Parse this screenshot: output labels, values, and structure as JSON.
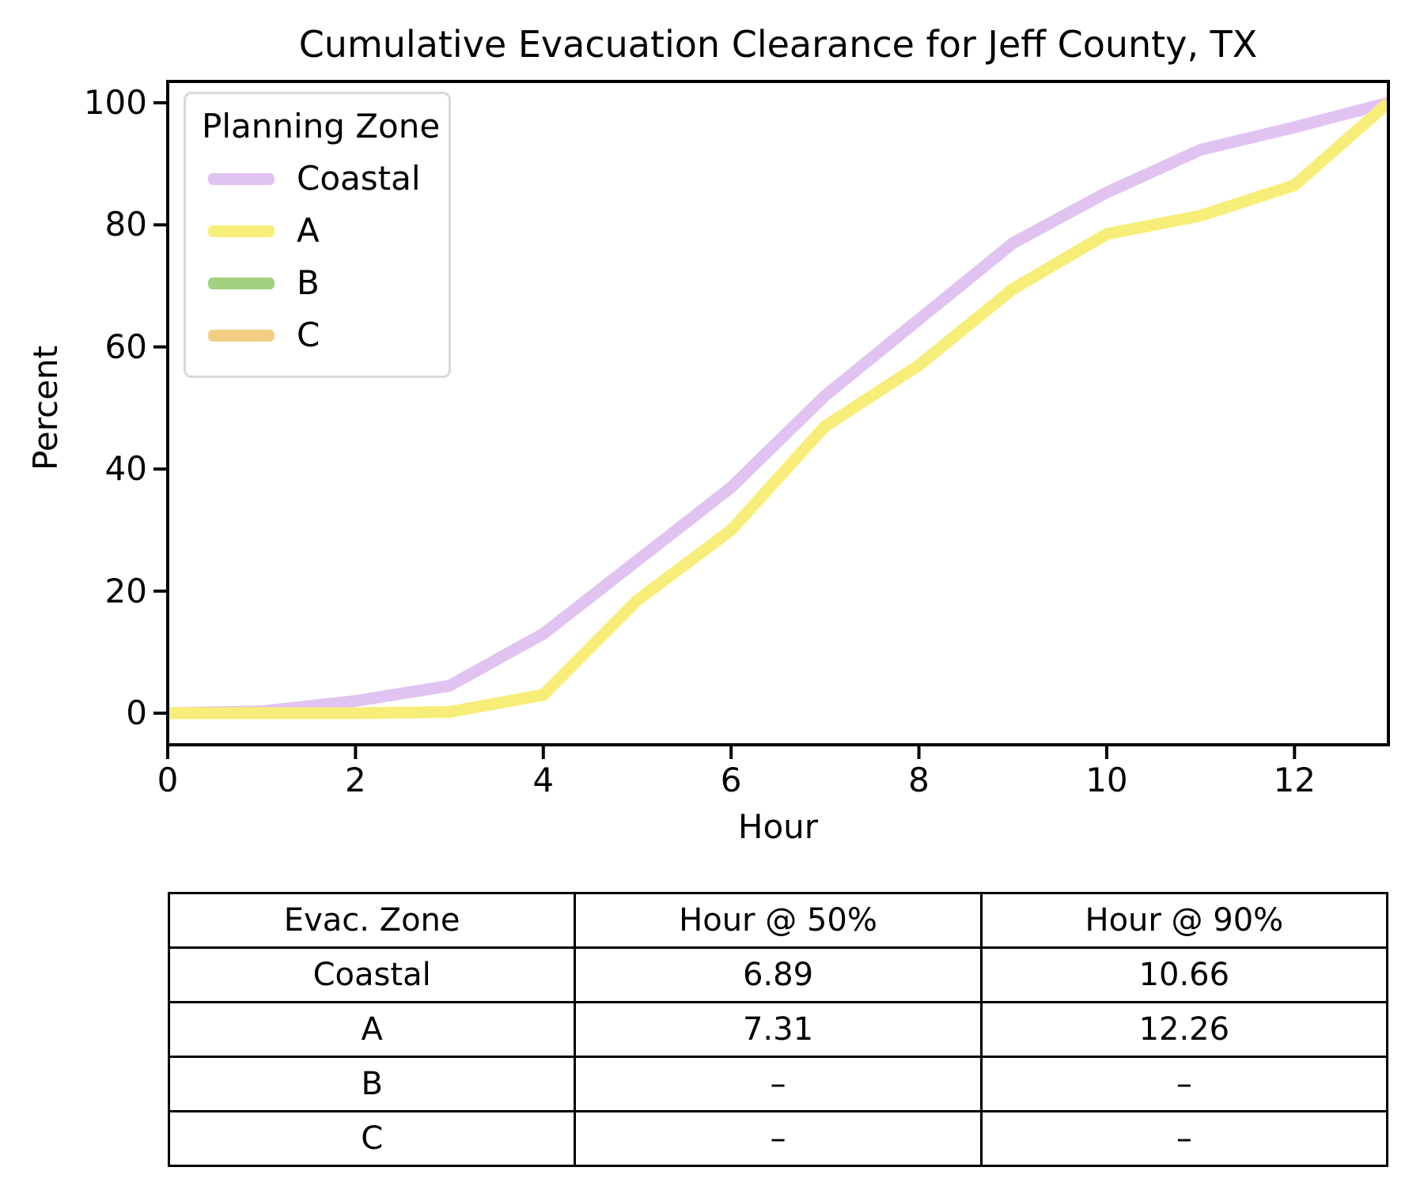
{
  "title": "Cumulative Evacuation Clearance for Jeff County, TX",
  "chart_data": {
    "type": "line",
    "title": "Cumulative Evacuation Clearance for Jeff County, TX",
    "xlabel": "Hour",
    "ylabel": "Percent",
    "xlim": [
      0,
      13
    ],
    "ylim": [
      0,
      100
    ],
    "grid": false,
    "legend_title": "Planning Zone",
    "legend_position": "upper left",
    "x": [
      0,
      1,
      2,
      3,
      4,
      5,
      6,
      7,
      8,
      9,
      10,
      11,
      12,
      13
    ],
    "xticks": [
      0,
      2,
      4,
      6,
      8,
      10,
      12
    ],
    "yticks": [
      0,
      20,
      40,
      60,
      80,
      100
    ],
    "series": [
      {
        "name": "Coastal",
        "color": "#e1c3f1",
        "values": [
          0,
          0.3,
          2,
          4.5,
          13,
          25,
          37,
          52,
          64.5,
          77,
          85.3,
          92.3,
          96,
          100
        ]
      },
      {
        "name": "A",
        "color": "#f7ee79",
        "values": [
          0,
          0,
          0,
          0.2,
          3,
          18.5,
          30,
          47,
          57,
          69.5,
          78.5,
          81.5,
          86.5,
          100
        ]
      },
      {
        "name": "B",
        "color": "#a2d27f",
        "values": null
      },
      {
        "name": "C",
        "color": "#f2cd84",
        "values": null
      }
    ]
  },
  "table": {
    "headers": [
      "Evac. Zone",
      "Hour @ 50%",
      "Hour @ 90%"
    ],
    "rows": [
      [
        "Coastal",
        "6.89",
        "10.66"
      ],
      [
        "A",
        "7.31",
        "12.26"
      ],
      [
        "B",
        "–",
        "–"
      ],
      [
        "C",
        "–",
        "–"
      ]
    ]
  }
}
